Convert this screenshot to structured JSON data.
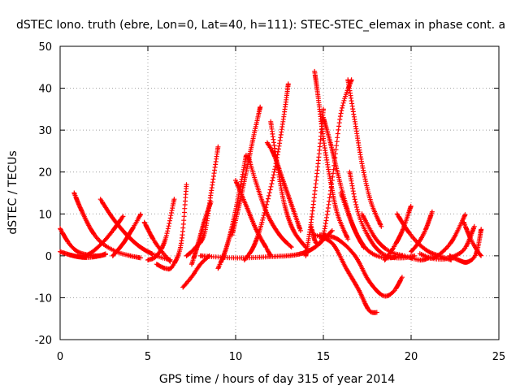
{
  "chart_data": {
    "type": "scatter",
    "title": "dSTEC Iono. truth (ebre, Lon=0, Lat=40, h=111): STEC-STEC_elemax in phase cont. a",
    "xlabel": "GPS time / hours of day 315 of year 2014",
    "ylabel": "dSTEC  / TECUs",
    "xlim": [
      0,
      25
    ],
    "ylim": [
      -20,
      50
    ],
    "xticks": [
      0,
      5,
      10,
      15,
      20,
      25
    ],
    "yticks": [
      -20,
      -10,
      0,
      10,
      20,
      30,
      40,
      50
    ],
    "xtick_labels": [
      "0",
      "5",
      "10",
      "15",
      "20",
      "25"
    ],
    "ytick_labels": [
      "-20",
      "-10",
      "0",
      "10",
      "20",
      "30",
      "40",
      "50"
    ],
    "grid": true,
    "marker": "plus",
    "color": "#ff0000",
    "series": [
      {
        "x": [
          0.0,
          0.5,
          1.0,
          1.6,
          2.2,
          2.6
        ],
        "y": [
          6.5,
          3.0,
          1.0,
          0.2,
          0.0,
          0.5
        ]
      },
      {
        "x": [
          0.0,
          0.5,
          1.0,
          1.5,
          2.0,
          2.6
        ],
        "y": [
          1.0,
          0.3,
          -0.2,
          -0.4,
          -0.2,
          0.3
        ]
      },
      {
        "x": [
          0.8,
          1.2,
          1.8,
          2.4,
          3.2,
          4.0,
          4.6
        ],
        "y": [
          15.0,
          11.0,
          6.0,
          3.0,
          1.0,
          0.0,
          -0.5
        ]
      },
      {
        "x": [
          1.5,
          2.0,
          2.5,
          3.0,
          3.6
        ],
        "y": [
          0.0,
          1.5,
          3.5,
          6.0,
          9.5
        ]
      },
      {
        "x": [
          2.3,
          3.0,
          3.8,
          4.6,
          5.5,
          6.3
        ],
        "y": [
          13.5,
          9.0,
          5.0,
          2.0,
          0.0,
          -1.0
        ]
      },
      {
        "x": [
          3.0,
          3.6,
          4.2,
          4.6
        ],
        "y": [
          0.0,
          3.0,
          7.0,
          10.0
        ]
      },
      {
        "x": [
          4.8,
          5.3,
          5.8,
          6.3
        ],
        "y": [
          8.0,
          4.0,
          1.0,
          -1.5
        ]
      },
      {
        "x": [
          5.0,
          5.5,
          6.0,
          6.5
        ],
        "y": [
          -1.0,
          0.0,
          4.0,
          13.5
        ]
      },
      {
        "x": [
          5.5,
          6.0,
          6.4,
          6.9,
          7.2
        ],
        "y": [
          -2.0,
          -3.0,
          -2.5,
          3.0,
          17.0
        ]
      },
      {
        "x": [
          7.0,
          7.5,
          8.0,
          8.5
        ],
        "y": [
          -7.5,
          -5.0,
          -2.0,
          0.0
        ]
      },
      {
        "x": [
          7.2,
          7.6,
          8.2,
          8.6,
          9.0
        ],
        "y": [
          0.0,
          1.5,
          5.0,
          15.0,
          26.0
        ]
      },
      {
        "x": [
          7.5,
          7.8,
          8.2,
          8.6
        ],
        "y": [
          -2.0,
          2.0,
          8.0,
          13.0
        ]
      },
      {
        "x": [
          9.0,
          9.4,
          9.8,
          10.2,
          10.6
        ],
        "y": [
          -3.0,
          1.0,
          7.0,
          15.0,
          24.0
        ]
      },
      {
        "x": [
          9.8,
          10.2,
          10.6,
          11.0,
          11.4
        ],
        "y": [
          5.0,
          12.0,
          20.0,
          28.0,
          35.5
        ]
      },
      {
        "x": [
          10.0,
          10.6,
          11.2,
          11.8,
          12.0
        ],
        "y": [
          18.0,
          12.0,
          6.0,
          1.5,
          0.0
        ]
      },
      {
        "x": [
          10.5,
          11.0,
          11.5,
          12.2,
          12.7,
          13.0
        ],
        "y": [
          -1.0,
          2.0,
          8.0,
          20.0,
          32.0,
          41.0
        ]
      },
      {
        "x": [
          10.7,
          11.2,
          11.8,
          12.5,
          13.2
        ],
        "y": [
          24.0,
          17.0,
          10.0,
          5.0,
          2.0
        ]
      },
      {
        "x": [
          11.8,
          12.2,
          12.7,
          13.2,
          13.7
        ],
        "y": [
          27.0,
          24.0,
          18.0,
          12.0,
          6.0
        ]
      },
      {
        "x": [
          12.0,
          12.4,
          12.8,
          13.3,
          14.0
        ],
        "y": [
          32.0,
          21.0,
          12.0,
          6.0,
          2.0
        ]
      },
      {
        "x": [
          8.0,
          10.0,
          12.0,
          13.5,
          14.5,
          15.5
        ],
        "y": [
          0.0,
          -0.5,
          -0.2,
          0.3,
          2.0,
          6.0
        ]
      },
      {
        "x": [
          14.0,
          14.3,
          14.7,
          15.0
        ],
        "y": [
          0.0,
          8.0,
          22.0,
          35.0
        ]
      },
      {
        "x": [
          14.3,
          14.6,
          15.0,
          15.5,
          16.0,
          16.6
        ],
        "y": [
          7.0,
          3.0,
          5.0,
          18.0,
          34.0,
          42.0
        ]
      },
      {
        "x": [
          14.5,
          14.7,
          15.0,
          15.4,
          15.8,
          16.4
        ],
        "y": [
          44.0,
          38.0,
          28.0,
          18.0,
          10.0,
          4.0
        ]
      },
      {
        "x": [
          15.0,
          15.4,
          15.8,
          16.3,
          16.8,
          17.3
        ],
        "y": [
          33.0,
          27.0,
          20.0,
          12.0,
          6.0,
          2.0
        ]
      },
      {
        "x": [
          16.4,
          16.8,
          17.2,
          17.7,
          18.3
        ],
        "y": [
          42.0,
          32.0,
          22.0,
          13.0,
          7.0
        ]
      },
      {
        "x": [
          16.0,
          16.6,
          17.2,
          17.8,
          18.6,
          19.5
        ],
        "y": [
          15.0,
          8.0,
          3.0,
          0.5,
          -0.5,
          0.0
        ]
      },
      {
        "x": [
          14.5,
          15.5,
          16.3,
          17.0,
          17.6,
          18.1
        ],
        "y": [
          5.0,
          3.0,
          -3.0,
          -8.0,
          -13.0,
          -13.5
        ]
      },
      {
        "x": [
          14.8,
          15.8,
          16.8,
          17.6,
          18.4,
          19.0,
          19.5
        ],
        "y": [
          5.0,
          4.0,
          0.0,
          -6.0,
          -9.5,
          -8.5,
          -5.0
        ]
      },
      {
        "x": [
          16.5,
          17.0,
          17.8,
          18.6,
          19.5,
          20.2
        ],
        "y": [
          20.0,
          10.0,
          3.0,
          0.0,
          -0.5,
          0.0
        ]
      },
      {
        "x": [
          17.2,
          18.0,
          18.8,
          19.6,
          20.5,
          21.0
        ],
        "y": [
          10.0,
          4.0,
          1.0,
          0.0,
          -1.0,
          -0.5
        ]
      },
      {
        "x": [
          18.5,
          19.0,
          19.5,
          20.0
        ],
        "y": [
          -1.0,
          2.0,
          6.0,
          12.0
        ]
      },
      {
        "x": [
          19.2,
          19.8,
          20.4,
          21.0,
          21.6,
          22.3
        ],
        "y": [
          10.0,
          6.0,
          3.0,
          1.0,
          0.0,
          -1.0
        ]
      },
      {
        "x": [
          20.0,
          20.4,
          20.8,
          21.2
        ],
        "y": [
          1.0,
          3.0,
          6.0,
          10.5
        ]
      },
      {
        "x": [
          20.5,
          21.2,
          21.8,
          22.4,
          23.1
        ],
        "y": [
          0.5,
          -0.5,
          1.0,
          4.0,
          10.0
        ]
      },
      {
        "x": [
          21.0,
          21.8,
          22.5,
          23.1,
          23.6
        ],
        "y": [
          -0.5,
          -0.8,
          0.0,
          2.0,
          7.0
        ]
      },
      {
        "x": [
          22.2,
          22.7,
          23.2,
          23.7,
          24.0
        ],
        "y": [
          0.0,
          -1.0,
          -1.5,
          0.5,
          6.5
        ]
      },
      {
        "x": [
          23.0,
          23.4,
          23.8,
          24.0
        ],
        "y": [
          8.0,
          4.0,
          1.0,
          0.0
        ]
      }
    ]
  }
}
